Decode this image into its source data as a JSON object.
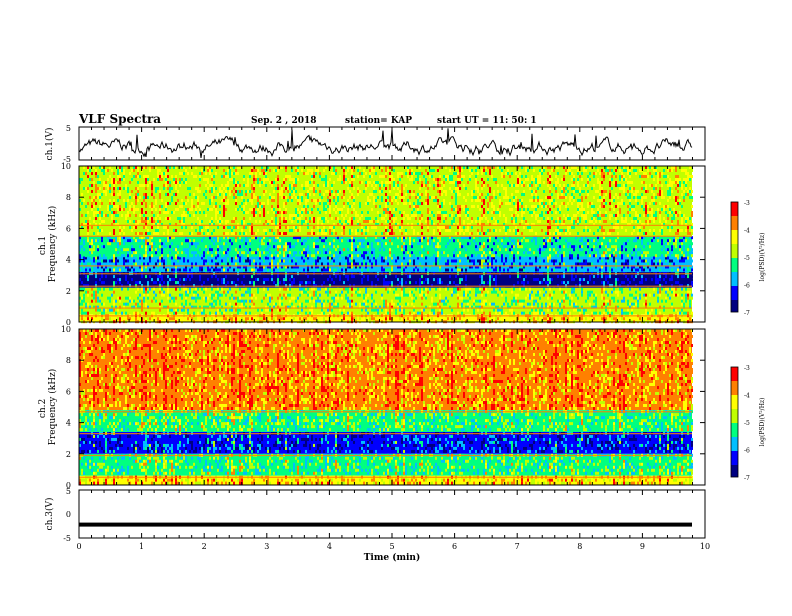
{
  "header": {
    "title": "VLF Spectra",
    "date": "Sep. 2 , 2018",
    "station": "station= KAP",
    "start": "start UT =  11: 50: 1"
  },
  "colors": {
    "background": "#ffffff",
    "trace": "#000000",
    "colormap": [
      "#000080",
      "#0000ff",
      "#00bfff",
      "#00ff80",
      "#c0ff00",
      "#ffff00",
      "#ff8000",
      "#ff0000"
    ]
  },
  "chart_data": [
    {
      "id": "ch1-waveform",
      "type": "line",
      "ylabel": "ch.1(V)",
      "ylim": [
        -5,
        5
      ],
      "yticks": [
        "5",
        "-5"
      ],
      "xlim": [
        0,
        10
      ],
      "description_values": "noisy waveform around -1 V, range approx -4.5 to 4.5"
    },
    {
      "id": "ch1-spectrogram",
      "type": "heatmap",
      "ylabel": "ch.1\nFrequency (kHz)",
      "ylim": [
        0,
        10
      ],
      "yticks": [
        "0",
        "2",
        "4",
        "6",
        "8",
        "10"
      ],
      "xlim": [
        0,
        10
      ],
      "colorbar": {
        "label": "log(PSD)(V²/Hz)",
        "ticks": [
          "-3",
          "-4",
          "-5",
          "-6",
          "-7"
        ],
        "range": [
          -7,
          -3
        ]
      },
      "bands_khz": [
        {
          "from": 0,
          "to": 0.5,
          "level": -4.3
        },
        {
          "from": 0.5,
          "to": 2.2,
          "level": -5.0
        },
        {
          "from": 2.2,
          "to": 3.2,
          "level": -6.6
        },
        {
          "from": 3.2,
          "to": 4.2,
          "level": -6.0
        },
        {
          "from": 4.2,
          "to": 5.5,
          "level": -5.5
        },
        {
          "from": 5.5,
          "to": 10,
          "level": -4.6
        }
      ],
      "lines_khz": [
        0.4,
        0.9,
        2.3,
        3.1,
        3.6,
        5.5,
        6.2
      ]
    },
    {
      "id": "ch2-spectrogram",
      "type": "heatmap",
      "ylabel": "ch.2\nFrequency (kHz)",
      "ylim": [
        0,
        10
      ],
      "yticks": [
        "0",
        "2",
        "4",
        "6",
        "8",
        "10"
      ],
      "xlim": [
        0,
        10
      ],
      "colorbar": {
        "label": "log(PSD)(V²/Hz)",
        "ticks": [
          "-3",
          "-4",
          "-5",
          "-6",
          "-7"
        ],
        "range": [
          -7,
          -3
        ]
      },
      "bands_khz": [
        {
          "from": 0,
          "to": 0.6,
          "level": -4.3
        },
        {
          "from": 0.6,
          "to": 2.0,
          "level": -5.3
        },
        {
          "from": 2.0,
          "to": 3.4,
          "level": -6.4
        },
        {
          "from": 3.4,
          "to": 4.8,
          "level": -5.2
        },
        {
          "from": 4.8,
          "to": 10,
          "level": -4.0
        }
      ],
      "lines_khz": [
        0.5,
        1.9,
        3.3,
        4.7
      ]
    },
    {
      "id": "ch3-waveform",
      "type": "line",
      "ylabel": "ch.3(V)",
      "ylim": [
        -5,
        5
      ],
      "yticks": [
        "5",
        "0",
        "-5"
      ],
      "xlim": [
        0,
        10
      ],
      "xlabel": "Time (min)",
      "xticks": [
        "0",
        "1",
        "2",
        "3",
        "4",
        "5",
        "6",
        "7",
        "8",
        "9",
        "10"
      ],
      "values_constant": -2.2
    }
  ]
}
